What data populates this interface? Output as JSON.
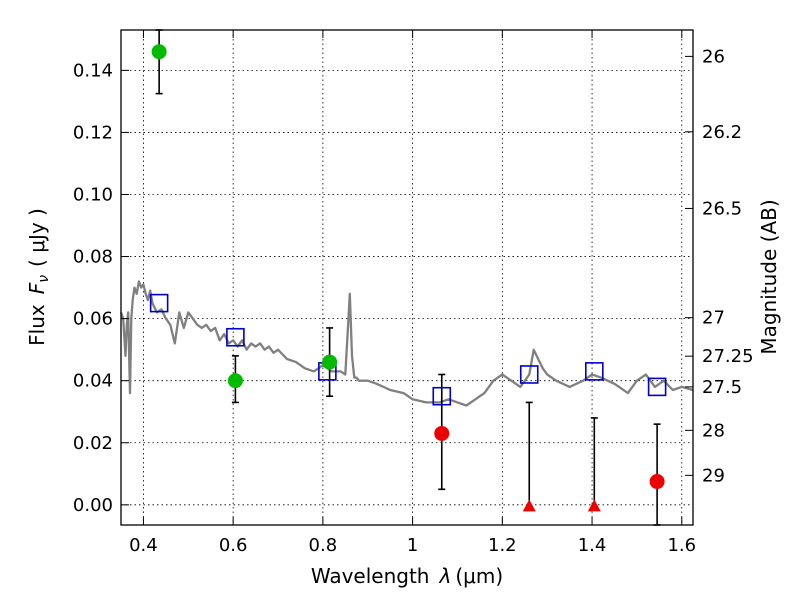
{
  "chart_data": {
    "type": "scatter",
    "xlabel_text": "Wavelength",
    "xlabel_math": "λ",
    "xlabel_unit": "(μm)",
    "ylabel_text": "Flux",
    "ylabel_math": "F",
    "ylabel_sub": "ν",
    "ylabel_unit": "( μJy )",
    "y2label": "Magnitude (AB)",
    "xlim": [
      0.35,
      1.625
    ],
    "ylim": [
      -0.0065,
      0.153
    ],
    "x_ticks": [
      0.4,
      0.6,
      0.8,
      1.0,
      1.2,
      1.4,
      1.6
    ],
    "x_tick_labels": [
      "0.4",
      "0.6",
      "0.8",
      "1",
      "1.2",
      "1.4",
      "1.6"
    ],
    "y_ticks": [
      0.0,
      0.02,
      0.04,
      0.06,
      0.08,
      0.1,
      0.12,
      0.14
    ],
    "y_tick_labels": [
      "0.00",
      "0.02",
      "0.04",
      "0.06",
      "0.08",
      "0.10",
      "0.12",
      "0.14"
    ],
    "y2_ticks": [
      {
        "flux": 0.1445,
        "label": "26"
      },
      {
        "flux": 0.1202,
        "label": "26.2"
      },
      {
        "flux": 0.0955,
        "label": "26.5"
      },
      {
        "flux": 0.0603,
        "label": "27"
      },
      {
        "flux": 0.0479,
        "label": "27.25"
      },
      {
        "flux": 0.038,
        "label": "27.5"
      },
      {
        "flux": 0.024,
        "label": "28"
      },
      {
        "flux": 0.0095,
        "label": "29"
      }
    ],
    "grid": true,
    "model_sed": {
      "color": "#808080",
      "x": [
        0.35,
        0.355,
        0.36,
        0.363,
        0.366,
        0.37,
        0.373,
        0.376,
        0.38,
        0.385,
        0.39,
        0.395,
        0.4,
        0.405,
        0.41,
        0.415,
        0.42,
        0.43,
        0.44,
        0.45,
        0.46,
        0.47,
        0.48,
        0.49,
        0.5,
        0.51,
        0.52,
        0.53,
        0.54,
        0.55,
        0.56,
        0.57,
        0.58,
        0.59,
        0.6,
        0.61,
        0.62,
        0.63,
        0.64,
        0.65,
        0.66,
        0.67,
        0.68,
        0.69,
        0.7,
        0.72,
        0.74,
        0.76,
        0.78,
        0.8,
        0.82,
        0.84,
        0.85,
        0.855,
        0.86,
        0.865,
        0.87,
        0.875,
        0.88,
        0.9,
        0.92,
        0.95,
        0.98,
        1.0,
        1.03,
        1.06,
        1.08,
        1.1,
        1.12,
        1.14,
        1.16,
        1.18,
        1.2,
        1.22,
        1.24,
        1.26,
        1.27,
        1.28,
        1.29,
        1.3,
        1.32,
        1.35,
        1.38,
        1.4,
        1.42,
        1.45,
        1.48,
        1.5,
        1.52,
        1.54,
        1.56,
        1.58,
        1.6,
        1.625
      ],
      "y": [
        0.062,
        0.06,
        0.048,
        0.058,
        0.062,
        0.036,
        0.06,
        0.066,
        0.07,
        0.068,
        0.072,
        0.07,
        0.071,
        0.068,
        0.066,
        0.069,
        0.065,
        0.062,
        0.063,
        0.06,
        0.058,
        0.052,
        0.062,
        0.057,
        0.062,
        0.06,
        0.058,
        0.057,
        0.058,
        0.056,
        0.057,
        0.053,
        0.055,
        0.052,
        0.053,
        0.051,
        0.053,
        0.05,
        0.052,
        0.051,
        0.052,
        0.05,
        0.051,
        0.049,
        0.05,
        0.047,
        0.046,
        0.044,
        0.043,
        0.045,
        0.043,
        0.043,
        0.042,
        0.055,
        0.068,
        0.048,
        0.041,
        0.041,
        0.04,
        0.04,
        0.039,
        0.037,
        0.036,
        0.034,
        0.033,
        0.033,
        0.034,
        0.033,
        0.032,
        0.034,
        0.036,
        0.04,
        0.042,
        0.04,
        0.038,
        0.042,
        0.05,
        0.047,
        0.044,
        0.042,
        0.04,
        0.038,
        0.04,
        0.042,
        0.041,
        0.039,
        0.036,
        0.04,
        0.042,
        0.038,
        0.04,
        0.037,
        0.038,
        0.037
      ]
    },
    "model_photometry": {
      "name": "model",
      "marker": "open-square",
      "color": "#0000cc",
      "x": [
        0.435,
        0.605,
        0.81,
        1.065,
        1.26,
        1.405,
        1.545
      ],
      "y": [
        0.065,
        0.054,
        0.043,
        0.035,
        0.042,
        0.043,
        0.038
      ]
    },
    "observed_detections": {
      "name": "observed",
      "marker": "filled-circle",
      "color": "#00bb00",
      "x": [
        0.435,
        0.605,
        0.815
      ],
      "y": [
        0.146,
        0.04,
        0.046
      ],
      "yerr_low": [
        0.1325,
        0.033,
        0.035
      ],
      "yerr_high": [
        0.153,
        0.048,
        0.057
      ]
    },
    "observed_low_sn": {
      "name": "low_sn",
      "marker": "filled-circle",
      "color": "#ee0000",
      "x": [
        1.065,
        1.545
      ],
      "y": [
        0.023,
        0.0075
      ],
      "yerr_low": [
        0.005,
        -0.0065
      ],
      "yerr_high": [
        0.042,
        0.026
      ]
    },
    "upper_limits": {
      "name": "upper_limits",
      "marker": "filled-triangle",
      "color": "#ee0000",
      "x": [
        1.26,
        1.405
      ],
      "y": [
        -0.0005,
        -0.0005
      ],
      "yerr_low": [
        -0.0005,
        -0.0005
      ],
      "yerr_high": [
        0.033,
        0.028
      ]
    }
  }
}
